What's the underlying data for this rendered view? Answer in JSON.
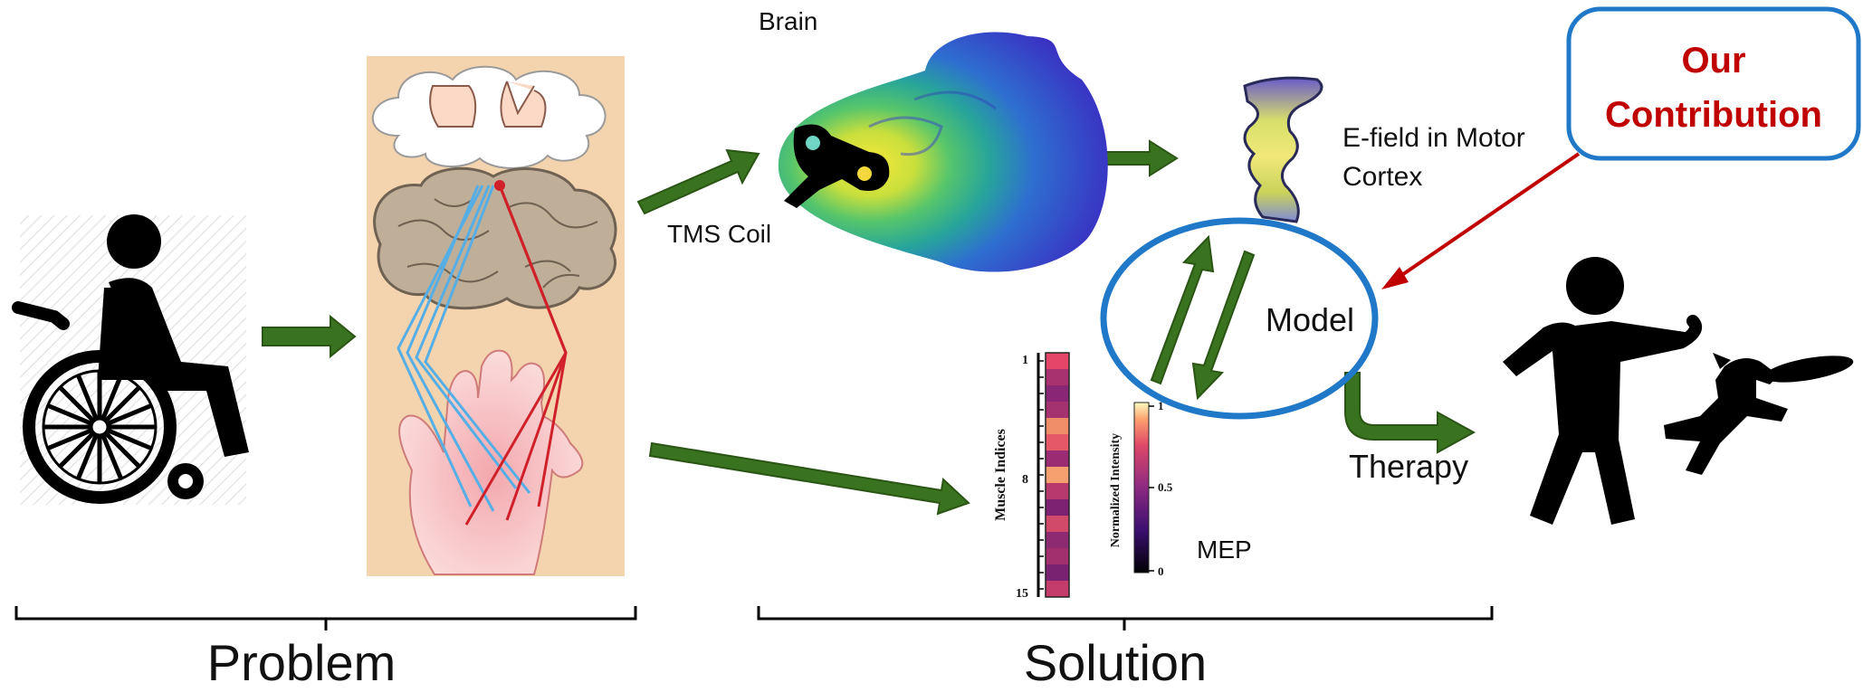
{
  "labels": {
    "brain": "Brain",
    "tms_coil": "TMS Coil",
    "efield_line1": "E-field in Motor",
    "efield_line2": "Cortex",
    "model": "Model",
    "therapy": "Therapy",
    "mep": "MEP",
    "contribution_line1": "Our",
    "contribution_line2": "Contribution",
    "problem": "Problem",
    "solution": "Solution"
  },
  "heatmap": {
    "ylabel": "Muscle Indices",
    "row_ticks": [
      "1",
      "8",
      "15"
    ],
    "rows": 15,
    "colorbar_label": "Normalized Intensity",
    "colorbar_ticks": [
      "1",
      "0.5",
      "0"
    ]
  },
  "colors": {
    "arrow_green": "#3a7320",
    "arrow_green_dark": "#2a5515",
    "model_ellipse": "#1f78c8",
    "contribution_border": "#1f78c8",
    "contribution_text": "#c00000",
    "pointer_red": "#c00000"
  }
}
